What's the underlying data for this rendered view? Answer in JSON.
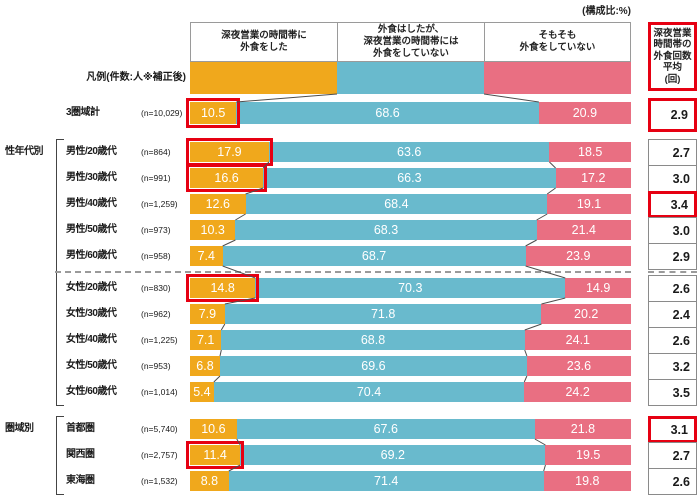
{
  "note_top": "(構成比:%)",
  "column_headers": [
    "深夜営業の時間帯に\n外食をした",
    "外食はしたが、\n深夜営業の時間帯には\n外食をしていない",
    "そもそも\n外食をしていない"
  ],
  "right_header": "深夜営業\n時間帯の\n外食回数\n平均\n(回)",
  "legend_label": "凡例(件数:人※補正後)",
  "colors": {
    "orange": "#F0A81C",
    "blue": "#69BACD",
    "pink": "#E96F82",
    "highlight_red": "#E60012",
    "box_border": "#8A8A8A",
    "connector": "#4D4D4D",
    "header_border": "#9A9A9A"
  },
  "chart_data": {
    "type": "bar",
    "stacked": true,
    "horizontal": true,
    "value_unit": "%",
    "xlim": [
      0,
      100
    ],
    "title": "(構成比:%)",
    "series_names": [
      "深夜営業の時間帯に外食をした",
      "外食はしたが、深夜営業の時間帯には外食をしていない",
      "そもそも外食をしていない"
    ],
    "avg_header": "深夜営業時間帯の外食回数平均(回)",
    "groups": [
      {
        "label": "",
        "rows": [
          {
            "category": "3圏域計",
            "n": "(n=10,029)",
            "values": [
              10.5,
              68.6,
              20.9
            ],
            "avg": "2.9",
            "bar_highlight": true,
            "avg_highlight": true
          }
        ]
      },
      {
        "label": "性年代別",
        "rows": [
          {
            "category": "男性/20歳代",
            "n": "(n=864)",
            "values": [
              17.9,
              63.6,
              18.5
            ],
            "avg": "2.7",
            "bar_highlight": true
          },
          {
            "category": "男性/30歳代",
            "n": "(n=991)",
            "values": [
              16.6,
              66.3,
              17.2
            ],
            "avg": "3.0",
            "bar_highlight": true
          },
          {
            "category": "男性/40歳代",
            "n": "(n=1,259)",
            "values": [
              12.6,
              68.4,
              19.1
            ],
            "avg": "3.4",
            "avg_highlight": true
          },
          {
            "category": "男性/50歳代",
            "n": "(n=973)",
            "values": [
              10.3,
              68.3,
              21.4
            ],
            "avg": "3.0"
          },
          {
            "category": "男性/60歳代",
            "n": "(n=958)",
            "values": [
              7.4,
              68.7,
              23.9
            ],
            "avg": "2.9",
            "divider_after": true
          },
          {
            "category": "女性/20歳代",
            "n": "(n=830)",
            "values": [
              14.8,
              70.3,
              14.9
            ],
            "avg": "2.6",
            "bar_highlight": true
          },
          {
            "category": "女性/30歳代",
            "n": "(n=962)",
            "values": [
              7.9,
              71.8,
              20.2
            ],
            "avg": "2.4"
          },
          {
            "category": "女性/40歳代",
            "n": "(n=1,225)",
            "values": [
              7.1,
              68.8,
              24.1
            ],
            "avg": "2.6"
          },
          {
            "category": "女性/50歳代",
            "n": "(n=953)",
            "values": [
              6.8,
              69.6,
              23.6
            ],
            "avg": "3.2"
          },
          {
            "category": "女性/60歳代",
            "n": "(n=1,014)",
            "values": [
              5.4,
              70.4,
              24.2
            ],
            "avg": "3.5"
          }
        ]
      },
      {
        "label": "圏域別",
        "rows": [
          {
            "category": "首都圏",
            "n": "(n=5,740)",
            "values": [
              10.6,
              67.6,
              21.8
            ],
            "avg": "3.1",
            "avg_highlight": true
          },
          {
            "category": "関西圏",
            "n": "(n=2,757)",
            "values": [
              11.4,
              69.2,
              19.5
            ],
            "avg": "2.7",
            "bar_highlight": true
          },
          {
            "category": "東海圏",
            "n": "(n=1,532)",
            "values": [
              8.8,
              71.4,
              19.8
            ],
            "avg": "2.6"
          }
        ]
      }
    ]
  }
}
